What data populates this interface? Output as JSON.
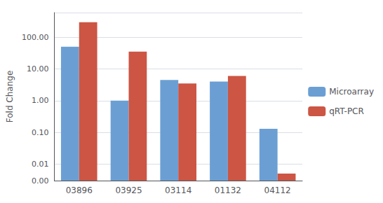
{
  "chart_data": {
    "type": "bar",
    "categories": [
      "03896",
      "03925",
      "03114",
      "01132",
      "04112"
    ],
    "series": [
      {
        "name": "Microarray",
        "color": "#6B9FD4",
        "values": [
          50,
          1.0,
          4.5,
          4.0,
          0.13
        ]
      },
      {
        "name": "qRT-PCR",
        "color": "#CC5544",
        "values": [
          300,
          35,
          3.5,
          6.0,
          0.005
        ]
      }
    ],
    "ylabel": "Fold Change",
    "log": "y",
    "ylim": [
      0.003,
      600
    ],
    "yticks": [
      {
        "value": 0.003,
        "label": "0.00"
      },
      {
        "value": 0.01,
        "label": "0.01"
      },
      {
        "value": 0.1,
        "label": "0.10"
      },
      {
        "value": 1.0,
        "label": "1.00"
      },
      {
        "value": 10.0,
        "label": "10.00"
      },
      {
        "value": 100.0,
        "label": "100.00"
      }
    ],
    "grid": true,
    "legend": "right"
  }
}
